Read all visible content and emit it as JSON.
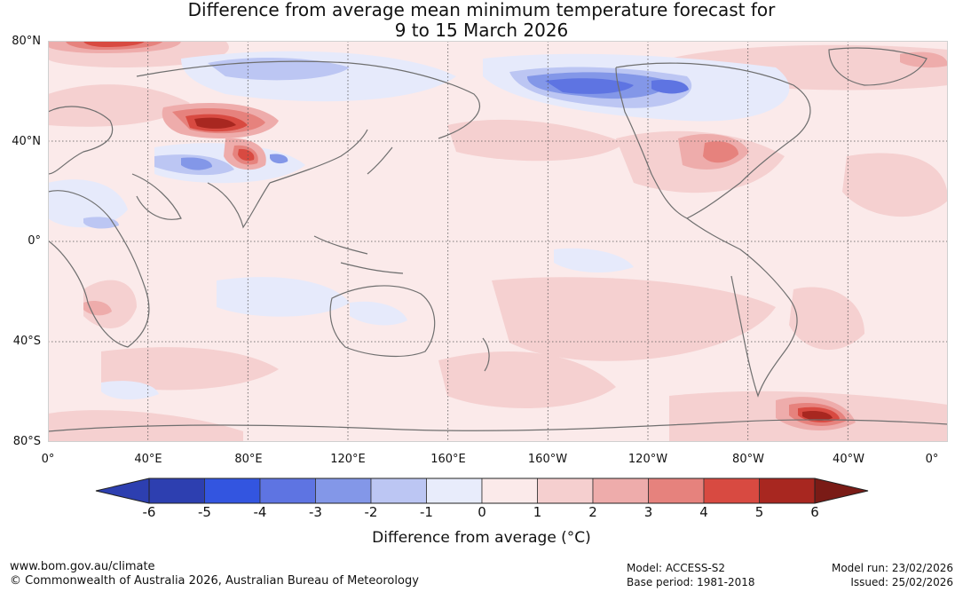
{
  "title": {
    "line1": "Difference from average mean minimum temperature forecast for",
    "line2": "9 to 15 March 2026"
  },
  "map": {
    "lat_labels": [
      "80°N",
      "40°N",
      "0°",
      "40°S",
      "80°S"
    ],
    "lon_labels": [
      "0°",
      "40°E",
      "80°E",
      "120°E",
      "160°E",
      "160°W",
      "120°W",
      "80°W",
      "40°W",
      "0°"
    ],
    "grid": "dotted"
  },
  "colorbar": {
    "ticks": [
      "-6",
      "-5",
      "-4",
      "-3",
      "-2",
      "-1",
      "0",
      "1",
      "2",
      "3",
      "4",
      "5",
      "6"
    ],
    "colors": [
      "#233a9a",
      "#2d3fb0",
      "#3355e0",
      "#5e74e2",
      "#8397e8",
      "#bcc6f3",
      "#e8ecfb",
      "#fbeaea",
      "#f5cfcf",
      "#eeacab",
      "#e6827d",
      "#d84a41",
      "#a82720"
    ],
    "under_color": "#1e2f7d",
    "over_color": "#7a1b16",
    "label": "Difference from average (°C)"
  },
  "footer": {
    "website": "www.bom.gov.au/climate",
    "copyright": "© Commonwealth of Australia 2026, Australian Bureau of Meteorology",
    "model": "Model: ACCESS-S2",
    "base_period": "Base period: 1981-2018",
    "model_run": "Model run: 23/02/2026",
    "issued": "Issued: 25/02/2026"
  }
}
